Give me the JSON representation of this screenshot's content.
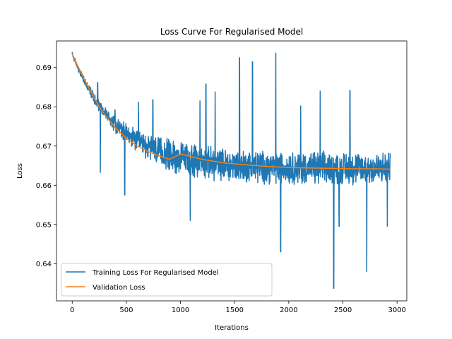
{
  "chart_data": {
    "type": "line",
    "title": "Loss Curve For Regularised Model",
    "xlabel": "Iterations",
    "ylabel": "Loss",
    "xlim": [
      -145,
      3090
    ],
    "ylim": [
      0.6305,
      0.6968
    ],
    "xticks": [
      0,
      500,
      1000,
      1500,
      2000,
      2500,
      3000
    ],
    "xtick_labels": [
      "0",
      "500",
      "1000",
      "1500",
      "2000",
      "2500",
      "3000"
    ],
    "yticks": [
      0.64,
      0.65,
      0.66,
      0.67,
      0.68,
      0.69
    ],
    "ytick_labels": [
      "0.64",
      "0.65",
      "0.66",
      "0.67",
      "0.68",
      "0.69"
    ],
    "grid": false,
    "legend_position": "bottom-left",
    "series": [
      {
        "name": "Training Loss For Regularised Model",
        "color": "#1f77b4",
        "x_range": [
          0,
          2940
        ],
        "baseline": {
          "start": 0.6935,
          "end": 0.6642,
          "decay_iterations": 420
        },
        "noise_band": {
          "start": 0.0005,
          "end": 0.0034
        },
        "spikes": [
          {
            "x": 235,
            "y": 0.6862
          },
          {
            "x": 260,
            "y": 0.6633
          },
          {
            "x": 395,
            "y": 0.6792
          },
          {
            "x": 485,
            "y": 0.6575
          },
          {
            "x": 612,
            "y": 0.6812
          },
          {
            "x": 745,
            "y": 0.6818
          },
          {
            "x": 1090,
            "y": 0.651
          },
          {
            "x": 1180,
            "y": 0.6815
          },
          {
            "x": 1235,
            "y": 0.6858
          },
          {
            "x": 1320,
            "y": 0.6838
          },
          {
            "x": 1545,
            "y": 0.6925
          },
          {
            "x": 1665,
            "y": 0.6915
          },
          {
            "x": 1880,
            "y": 0.6937
          },
          {
            "x": 1925,
            "y": 0.643
          },
          {
            "x": 2110,
            "y": 0.6802
          },
          {
            "x": 2290,
            "y": 0.684
          },
          {
            "x": 2415,
            "y": 0.6337
          },
          {
            "x": 2465,
            "y": 0.6495
          },
          {
            "x": 2565,
            "y": 0.6842
          },
          {
            "x": 2720,
            "y": 0.638
          },
          {
            "x": 2910,
            "y": 0.6495
          }
        ]
      },
      {
        "name": "Validation Loss",
        "color": "#ff7f0e",
        "x": [
          0,
          50,
          100,
          150,
          200,
          250,
          300,
          400,
          500,
          600,
          700,
          800,
          900,
          1000,
          1200,
          1400,
          1600,
          1800,
          2000,
          2200,
          2400,
          2600,
          2800,
          2940
        ],
        "y": [
          0.6935,
          0.6905,
          0.6876,
          0.685,
          0.6824,
          0.68,
          0.678,
          0.6746,
          0.672,
          0.67,
          0.6686,
          0.6675,
          0.6666,
          0.668,
          0.6666,
          0.6657,
          0.6652,
          0.6648,
          0.6645,
          0.6644,
          0.6643,
          0.6642,
          0.6642,
          0.6641
        ]
      }
    ]
  }
}
